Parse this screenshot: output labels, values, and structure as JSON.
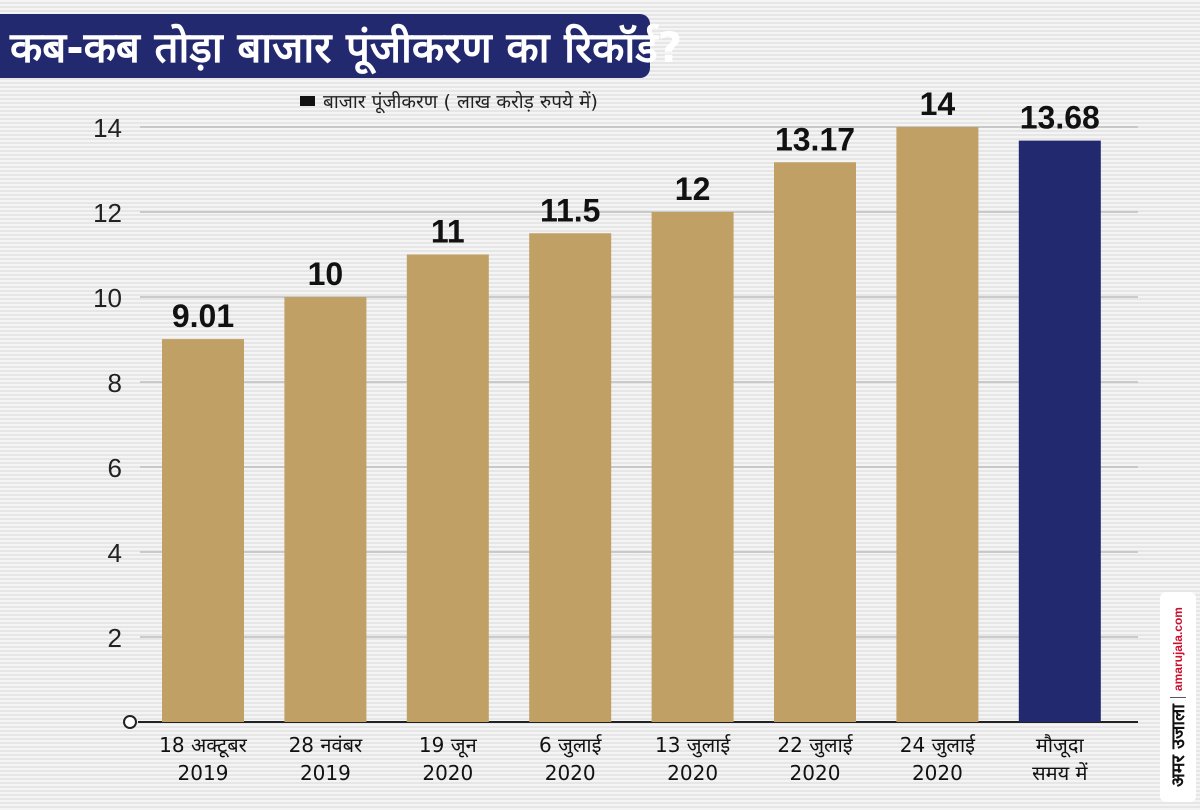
{
  "title": "कब-कब तोड़ा बाजार पूंजीकरण का रिकॉर्ड?",
  "legend": {
    "label": "बाजार पूंजीकरण ( लाख करोड़ रुपये में)"
  },
  "watermark": {
    "brand": "अमर उजाला",
    "site": "amarujala.com"
  },
  "colors": {
    "title_bg": "#23296f",
    "bar_default": "#c1a065",
    "bar_highlight": "#23296f"
  },
  "chart_data": {
    "type": "bar",
    "title": "कब-कब तोड़ा बाजार पूंजीकरण का रिकॉर्ड?",
    "series_name": "बाजार पूंजीकरण ( लाख करोड़ रुपये में)",
    "categories": [
      [
        "18 अक्टूबर",
        "2019"
      ],
      [
        "28 नवंबर",
        "2019"
      ],
      [
        "19 जून",
        "2020"
      ],
      [
        "6 जुलाई",
        "2020"
      ],
      [
        "13 जुलाई",
        "2020"
      ],
      [
        "22 जुलाई",
        "2020"
      ],
      [
        "24 जुलाई",
        "2020"
      ],
      [
        "मौजूदा",
        "समय में"
      ]
    ],
    "values": [
      9.01,
      10,
      11,
      11.5,
      12,
      13.17,
      14,
      13.68
    ],
    "value_labels": [
      "9.01",
      "10",
      "11",
      "11.5",
      "12",
      "13.17",
      "14",
      "13.68"
    ],
    "highlight_index": 7,
    "ylim": [
      0,
      14
    ],
    "yticks": [
      0,
      2,
      4,
      6,
      8,
      10,
      12,
      14
    ],
    "grid": true,
    "legend_position": "top"
  }
}
